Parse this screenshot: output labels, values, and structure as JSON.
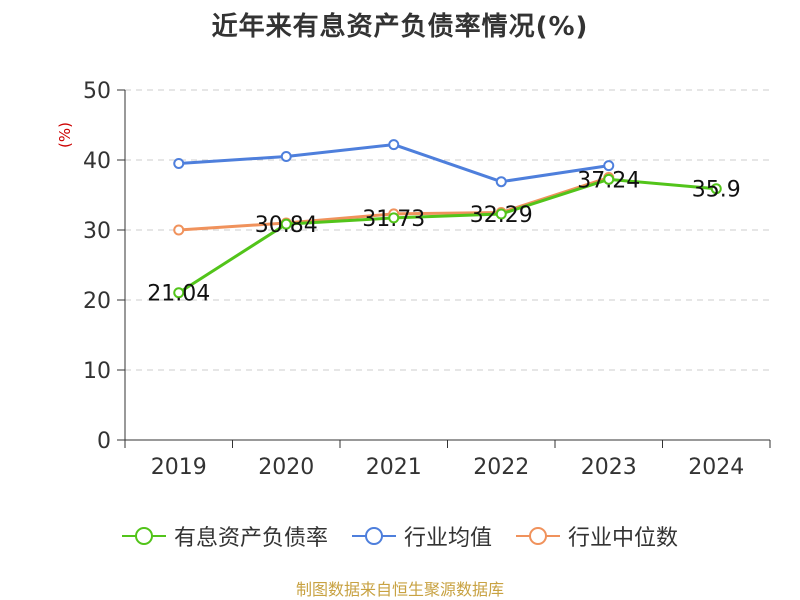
{
  "title": "近年来有息资产负债率情况(%)",
  "unit_label": "(%)",
  "footer": "制图数据来自恒生聚源数据库",
  "colors": {
    "有息资产负债率": "#52c41a",
    "行业均值": "#4e7fdc",
    "行业中位数": "#f0925c",
    "axis": "#333333",
    "grid": "#cccccc",
    "unit": "#cc0000",
    "footer": "#c8a242"
  },
  "chart_data": {
    "type": "line",
    "categories": [
      "2019",
      "2020",
      "2021",
      "2022",
      "2023",
      "2024"
    ],
    "ylim": [
      0,
      50
    ],
    "yticks": [
      0,
      10,
      20,
      30,
      40,
      50
    ],
    "grid": true,
    "legend_position": "bottom",
    "series": [
      {
        "name": "有息资产负债率",
        "values": [
          21.04,
          30.84,
          31.73,
          32.29,
          37.24,
          35.9
        ],
        "labels": [
          "21.04",
          "30.84",
          "31.73",
          "32.29",
          "37.24",
          "35.9"
        ]
      },
      {
        "name": "行业均值",
        "values": [
          39.5,
          40.5,
          42.2,
          36.9,
          39.2,
          null
        ]
      },
      {
        "name": "行业中位数",
        "values": [
          30.0,
          31.0,
          32.3,
          32.5,
          37.5,
          null
        ]
      }
    ]
  }
}
